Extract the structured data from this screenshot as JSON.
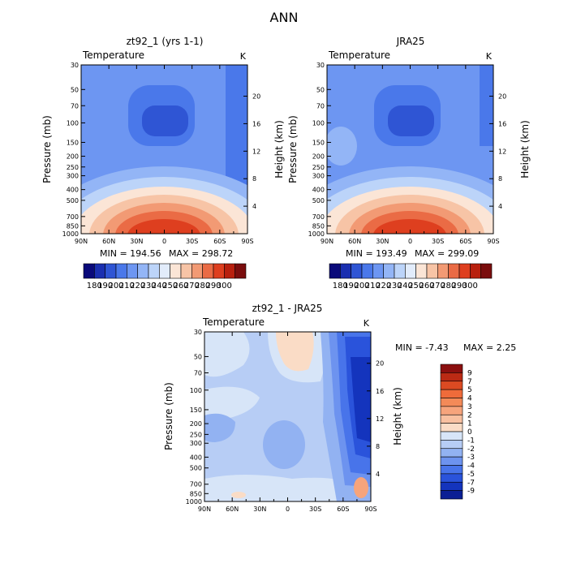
{
  "title": "ANN",
  "chart_data": [
    {
      "type": "heatmap",
      "panel": "model",
      "title": "zt92_1 (yrs 1-1)",
      "variable": "Temperature",
      "units": "K",
      "ylabel": "Pressure (mb)",
      "ylabel_right": "Height (km)",
      "x_ticks": [
        "90N",
        "60N",
        "30N",
        "0",
        "30S",
        "60S",
        "90S"
      ],
      "x_values": [
        90,
        60,
        30,
        0,
        -30,
        -60,
        -90
      ],
      "y_ticks": [
        30,
        50,
        70,
        100,
        150,
        200,
        250,
        300,
        400,
        500,
        700,
        850,
        1000
      ],
      "height_ticks": [
        20,
        16,
        12,
        8,
        4
      ],
      "ylim": [
        1000,
        30
      ],
      "min_text": "MIN = 194.56",
      "max_text": "MAX = 298.72",
      "min": 194.56,
      "max": 298.72,
      "colorbar_labels": [
        "180",
        "190",
        "200",
        "210",
        "220",
        "230",
        "240",
        "250",
        "260",
        "270",
        "280",
        "290",
        "300"
      ],
      "colorbar_colors": [
        "#0a0a7a",
        "#1a2fb0",
        "#2f55d4",
        "#4a78ea",
        "#6d96f2",
        "#93b5f6",
        "#bcd4f9",
        "#e2ecfb",
        "#fbe5d6",
        "#f7c4a6",
        "#f29a74",
        "#ea6b45",
        "#de3f1f",
        "#b8200e",
        "#7a0d0d"
      ]
    },
    {
      "type": "heatmap",
      "panel": "obs",
      "title": "JRA25",
      "variable": "Temperature",
      "units": "K",
      "ylabel": "Pressure (mb)",
      "ylabel_right": "Height (km)",
      "x_ticks": [
        "90N",
        "60N",
        "30N",
        "0",
        "30S",
        "60S",
        "90S"
      ],
      "x_values": [
        90,
        60,
        30,
        0,
        -30,
        -60,
        -90
      ],
      "y_ticks": [
        30,
        50,
        70,
        100,
        150,
        200,
        250,
        300,
        400,
        500,
        700,
        850,
        1000
      ],
      "height_ticks": [
        20,
        16,
        12,
        8,
        4
      ],
      "ylim": [
        1000,
        30
      ],
      "min_text": "MIN = 193.49",
      "max_text": "MAX = 299.09",
      "min": 193.49,
      "max": 299.09,
      "colorbar_labels": [
        "180",
        "190",
        "200",
        "210",
        "220",
        "230",
        "240",
        "250",
        "260",
        "270",
        "280",
        "290",
        "300"
      ],
      "colorbar_colors": [
        "#0a0a7a",
        "#1a2fb0",
        "#2f55d4",
        "#4a78ea",
        "#6d96f2",
        "#93b5f6",
        "#bcd4f9",
        "#e2ecfb",
        "#fbe5d6",
        "#f7c4a6",
        "#f29a74",
        "#ea6b45",
        "#de3f1f",
        "#b8200e",
        "#7a0d0d"
      ]
    },
    {
      "type": "heatmap",
      "panel": "diff",
      "title": "zt92_1 - JRA25",
      "variable": "Temperature",
      "units": "K",
      "ylabel": "Pressure (mb)",
      "ylabel_right": "Height (km)",
      "x_ticks": [
        "90N",
        "60N",
        "30N",
        "0",
        "30S",
        "60S",
        "90S"
      ],
      "x_values": [
        90,
        60,
        30,
        0,
        -30,
        -60,
        -90
      ],
      "y_ticks": [
        30,
        50,
        70,
        100,
        150,
        200,
        250,
        300,
        400,
        500,
        700,
        850,
        1000
      ],
      "height_ticks": [
        20,
        16,
        12,
        8,
        4
      ],
      "ylim": [
        1000,
        30
      ],
      "min_text": "MIN = -7.43",
      "max_text": "MAX = 2.25",
      "min": -7.43,
      "max": 2.25,
      "colorbar_labels": [
        "9",
        "7",
        "5",
        "4",
        "3",
        "2",
        "1",
        "0",
        "-1",
        "-2",
        "-3",
        "-4",
        "-5",
        "-7",
        "-9"
      ],
      "colorbar_colors": [
        "#8b0f0f",
        "#bb2a14",
        "#dc4a22",
        "#ef6b3a",
        "#f38a58",
        "#f6a47c",
        "#f8c0a0",
        "#fadcc6",
        "#d7e5f8",
        "#b7cdf5",
        "#92b2f2",
        "#6d93ef",
        "#4874ea",
        "#2a53db",
        "#1434bd",
        "#0b1f95"
      ]
    }
  ]
}
